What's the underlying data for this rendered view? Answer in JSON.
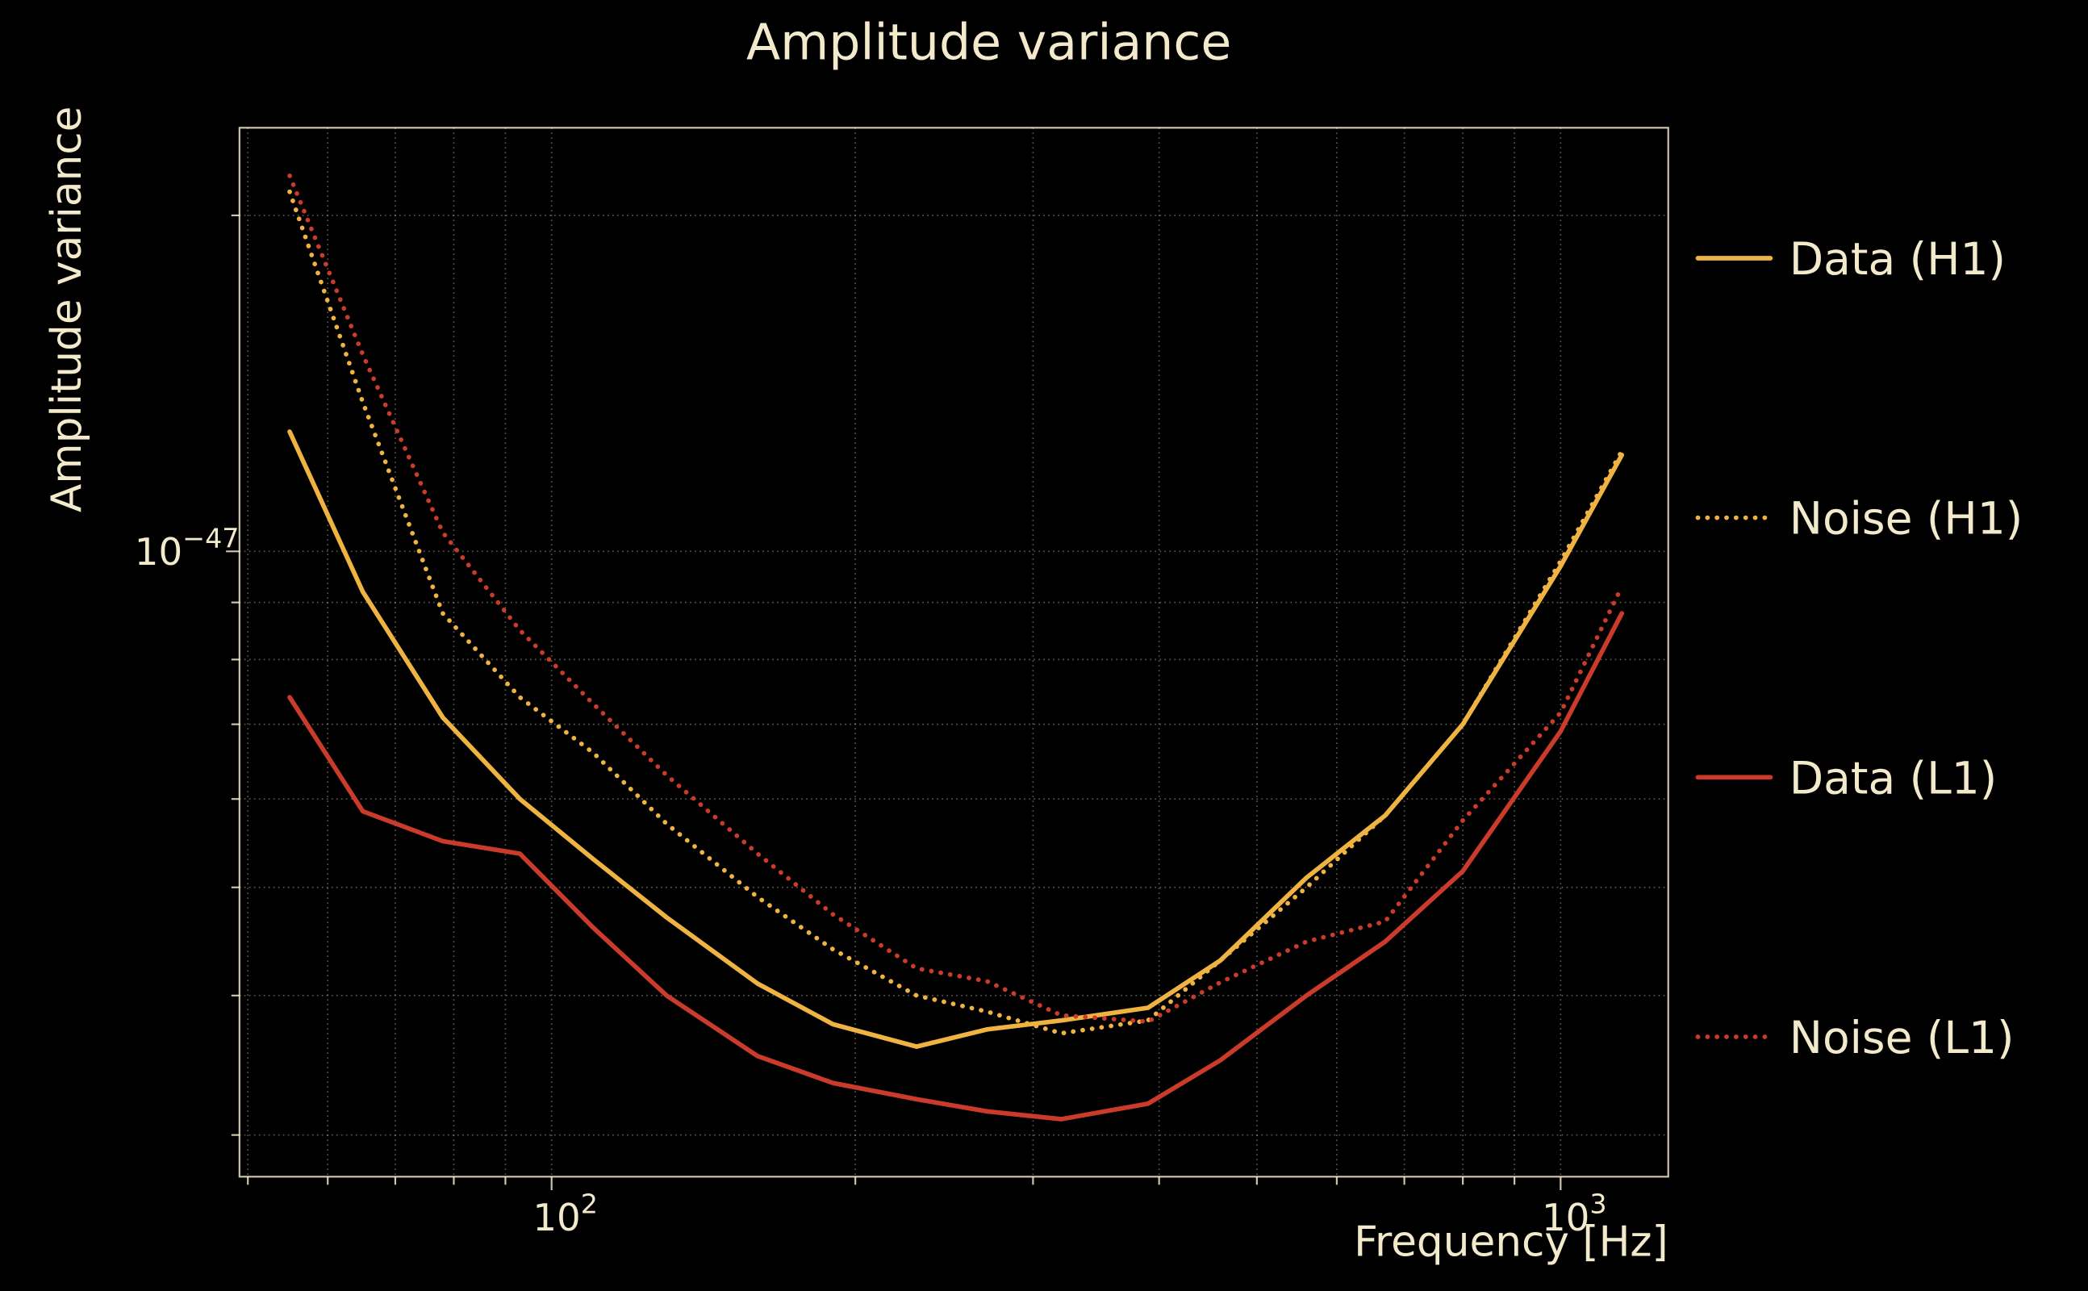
{
  "colors": {
    "background": "#000000",
    "text": "#f3e9cb",
    "grid": "#f3e9cb",
    "h1": "#efb342",
    "l1": "#ca3b2b"
  },
  "chart_data": {
    "type": "line",
    "title": "Amplitude variance",
    "xlabel": "Frequency [Hz]",
    "ylabel": "Amplitude variance",
    "x_scale": "log",
    "y_scale": "log",
    "x_range_hz": [
      49,
      1280
    ],
    "y_range": [
      2.75e-48,
      2.4e-47
    ],
    "grid": true,
    "legend_position": "right-outside",
    "x_major_ticks": [
      {
        "value": 100,
        "label_base": "10",
        "label_exp": "2"
      },
      {
        "value": 1000,
        "label_base": "10",
        "label_exp": "3"
      }
    ],
    "x_minor_ticks": [
      50,
      60,
      70,
      80,
      90,
      200,
      300,
      400,
      500,
      600,
      700,
      800,
      900
    ],
    "y_major_ticks": [
      {
        "value": 1e-47,
        "label_base": "10",
        "label_exp": "−47"
      }
    ],
    "y_minor_grid": [
      2e-47,
      9e-48,
      8e-48,
      7e-48,
      6e-48,
      5e-48,
      4e-48,
      3e-48
    ],
    "frequencies_hz": [
      55,
      65,
      78,
      93,
      110,
      130,
      160,
      190,
      230,
      270,
      320,
      390,
      460,
      560,
      670,
      800,
      1000,
      1150
    ],
    "series": [
      {
        "name": "Data (H1)",
        "style": "solid",
        "color": "#efb342",
        "values": [
          1.28e-47,
          9.2e-48,
          7.1e-48,
          6e-48,
          5.3e-48,
          4.7e-48,
          4.1e-48,
          3.77e-48,
          3.6e-48,
          3.73e-48,
          3.8e-48,
          3.9e-48,
          4.3e-48,
          5.1e-48,
          5.8e-48,
          7e-48,
          9.7e-48,
          1.22e-47
        ]
      },
      {
        "name": "Noise (H1)",
        "style": "dotted",
        "color": "#efb342",
        "values": [
          2.1e-47,
          1.36e-47,
          8.8e-48,
          7.4e-48,
          6.6e-48,
          5.7e-48,
          4.9e-48,
          4.4e-48,
          4e-48,
          3.87e-48,
          3.7e-48,
          3.8e-48,
          4.3e-48,
          5e-48,
          5.8e-48,
          7e-48,
          9.8e-48,
          1.23e-47
        ]
      },
      {
        "name": "Data (L1)",
        "style": "solid",
        "color": "#ca3b2b",
        "values": [
          7.4e-48,
          5.85e-48,
          5.5e-48,
          5.36e-48,
          4.6e-48,
          4e-48,
          3.53e-48,
          3.34e-48,
          3.23e-48,
          3.15e-48,
          3.1e-48,
          3.2e-48,
          3.5e-48,
          4e-48,
          4.47e-48,
          5.17e-48,
          6.9e-48,
          8.8e-48
        ]
      },
      {
        "name": "Noise (L1)",
        "style": "dotted",
        "color": "#ca3b2b",
        "values": [
          2.17e-47,
          1.5e-47,
          1.04e-47,
          8.5e-48,
          7.3e-48,
          6.3e-48,
          5.36e-48,
          4.73e-48,
          4.23e-48,
          4.12e-48,
          3.84e-48,
          3.79e-48,
          4.11e-48,
          4.47e-48,
          4.66e-48,
          5.74e-48,
          7.17e-48,
          9.3e-48
        ]
      }
    ]
  }
}
